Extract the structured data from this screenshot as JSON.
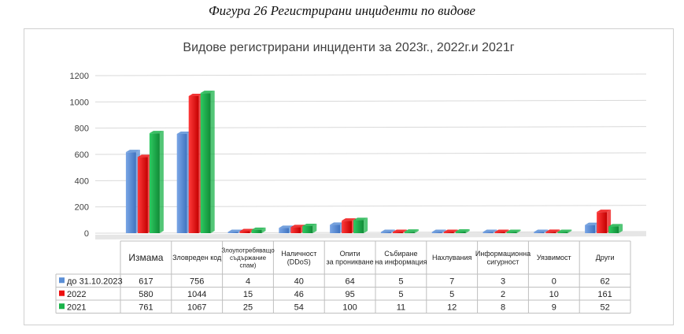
{
  "figure_caption": "Фигура 26 Регистрирани инциденти по видове",
  "chart_data": {
    "type": "bar",
    "title": "Видове регистрирани инциденти за 2023г., 2022г.и 2021г",
    "xlabel": "",
    "ylabel": "",
    "ylim": [
      0,
      1200
    ],
    "yticks": [
      0,
      200,
      400,
      600,
      800,
      1000,
      1200
    ],
    "grid": true,
    "legend": "table-left",
    "categories": [
      "Измама",
      "Зловреден код",
      "Злоупотребяващо съдържание спам)",
      "Наличност (DDoS)",
      "Опити за проникване",
      "Събиране на информация",
      "Нахлувания",
      "Информационна сигурност",
      "Уязвимост",
      "Други"
    ],
    "category_lines": [
      [
        "Измама"
      ],
      [
        "Зловреден код"
      ],
      [
        "Злоупотребяващо",
        "съдържание",
        "спам)"
      ],
      [
        "Наличност",
        "(DDoS)"
      ],
      [
        "Опити",
        "за проникване"
      ],
      [
        "Събиране",
        "на информация"
      ],
      [
        "Нахлувания"
      ],
      [
        "Информационна",
        "сигурност"
      ],
      [
        "Уязвимост"
      ],
      [
        "Други"
      ]
    ],
    "series": [
      {
        "name": "до 31.10.2023",
        "color": "#5b8fd6",
        "values": [
          617,
          756,
          4,
          40,
          64,
          5,
          7,
          3,
          0,
          62
        ]
      },
      {
        "name": "2022",
        "color": "#ee1010",
        "values": [
          580,
          1044,
          15,
          46,
          95,
          5,
          5,
          2,
          10,
          161
        ]
      },
      {
        "name": "2021",
        "color": "#1ab34a",
        "values": [
          761,
          1067,
          25,
          54,
          100,
          11,
          12,
          8,
          9,
          52
        ]
      }
    ]
  }
}
